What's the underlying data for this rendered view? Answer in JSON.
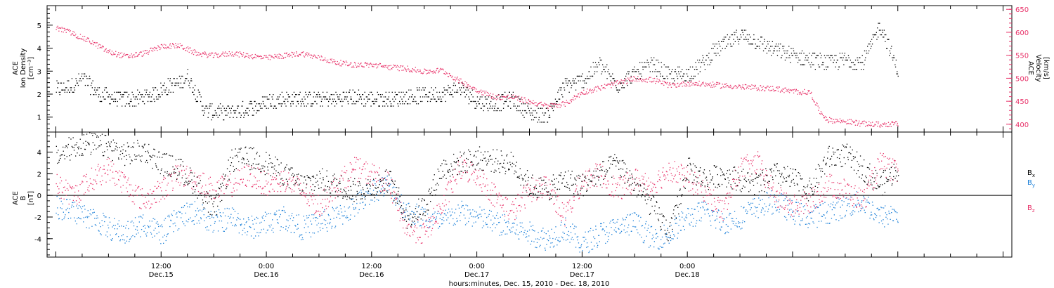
{
  "chart_data": [
    {
      "type": "scatter",
      "panel": "top",
      "left_axis": {
        "label_lines": [
          "ACE",
          "Ion Density",
          "[cm⁻³]"
        ],
        "ticks": [
          1,
          2,
          3,
          4,
          5
        ],
        "ylim": [
          0.35,
          5.85
        ]
      },
      "right_axis": {
        "label_lines": [
          "ACE",
          "Velocity",
          "[km/s]"
        ],
        "ticks": [
          400,
          450,
          500,
          550,
          600,
          650
        ],
        "ylim": [
          383,
          658
        ]
      },
      "series": [
        {
          "axis": "left",
          "color": "#000000",
          "x_hours": [
            0,
            2,
            3,
            5,
            7,
            9,
            11,
            13,
            14,
            15,
            17,
            19,
            21,
            23,
            24,
            26,
            28,
            30,
            32,
            34,
            36,
            38,
            40,
            42,
            44,
            46,
            48,
            50,
            52,
            54,
            56,
            58,
            60,
            62,
            64,
            66,
            68,
            70,
            72,
            74,
            75,
            76,
            77,
            78,
            80,
            82,
            84,
            86,
            88,
            90,
            92,
            94,
            96
          ],
          "values": [
            2.2,
            2.4,
            2.7,
            2.0,
            1.8,
            1.8,
            2.0,
            2.4,
            2.5,
            2.8,
            1.3,
            1.2,
            1.3,
            1.5,
            1.7,
            1.8,
            1.8,
            1.8,
            1.8,
            1.9,
            1.8,
            1.8,
            1.9,
            2.0,
            2.0,
            2.3,
            1.7,
            1.6,
            1.8,
            1.2,
            1.1,
            2.4,
            2.6,
            3.3,
            2.4,
            2.9,
            3.3,
            2.8,
            2.9,
            3.4,
            3.9,
            4.1,
            4.3,
            4.6,
            4.3,
            3.9,
            3.7,
            3.5,
            3.4,
            3.5,
            3.4,
            5.0,
            3.0
          ]
        },
        {
          "axis": "right",
          "color": "#e8336a",
          "x_hours": [
            0,
            1,
            2,
            4,
            6,
            8,
            10,
            12,
            14,
            16,
            18,
            20,
            22,
            24,
            26,
            28,
            30,
            32,
            34,
            36,
            38,
            40,
            42,
            44,
            46,
            48,
            50,
            52,
            54,
            56,
            58,
            60,
            62,
            64,
            66,
            68,
            70,
            72,
            74,
            76,
            78,
            80,
            82,
            84,
            86,
            87,
            88,
            90,
            92,
            94,
            96
          ],
          "values": [
            610,
            605,
            597,
            580,
            558,
            548,
            555,
            570,
            572,
            555,
            550,
            555,
            550,
            545,
            550,
            555,
            545,
            535,
            530,
            530,
            525,
            522,
            515,
            518,
            495,
            475,
            460,
            460,
            450,
            440,
            445,
            470,
            480,
            490,
            500,
            497,
            485,
            490,
            488,
            485,
            482,
            480,
            478,
            472,
            470,
            430,
            410,
            407,
            402,
            400,
            402
          ]
        }
      ],
      "x_range_hours": [
        -1,
        109
      ]
    },
    {
      "type": "scatter",
      "panel": "bottom",
      "left_axis": {
        "label_lines": [
          "ACE",
          "B",
          "[nT]"
        ],
        "ticks": [
          -4,
          -2,
          0,
          2,
          4
        ],
        "ylim": [
          -5.7,
          5.85
        ]
      },
      "legend_position": "right",
      "series": [
        {
          "name": "Bx",
          "color": "#000000",
          "x_hours": [
            0,
            2,
            4,
            6,
            8,
            10,
            12,
            14,
            16,
            18,
            20,
            22,
            24,
            26,
            28,
            30,
            32,
            34,
            36,
            38,
            40,
            42,
            44,
            46,
            48,
            50,
            52,
            54,
            56,
            58,
            60,
            62,
            64,
            66,
            68,
            70,
            72,
            74,
            76,
            78,
            80,
            82,
            84,
            86,
            88,
            90,
            92,
            94,
            96
          ],
          "values": [
            3.5,
            4.6,
            4.8,
            4.5,
            3.8,
            4.2,
            3.0,
            2.5,
            1.0,
            -1.5,
            3.2,
            3.5,
            3.0,
            2.0,
            1.0,
            1.5,
            1.0,
            0.5,
            0.8,
            1.5,
            -2.0,
            -1.0,
            2.5,
            3.0,
            3.5,
            3.2,
            3.0,
            1.0,
            0.5,
            1.5,
            1.0,
            2.0,
            3.0,
            1.0,
            -1.0,
            -3.5,
            2.5,
            1.5,
            2.0,
            1.5,
            1.0,
            2.0,
            1.5,
            0.5,
            3.5,
            3.8,
            2.5,
            1.0,
            2.5
          ]
        },
        {
          "name": "By",
          "color": "#1a7fd8",
          "x_hours": [
            0,
            2,
            4,
            6,
            8,
            10,
            12,
            14,
            16,
            18,
            20,
            22,
            24,
            26,
            28,
            30,
            32,
            34,
            36,
            38,
            40,
            42,
            44,
            46,
            48,
            50,
            52,
            54,
            56,
            58,
            60,
            62,
            64,
            66,
            68,
            70,
            72,
            74,
            76,
            78,
            80,
            82,
            84,
            86,
            88,
            90,
            92,
            94,
            96
          ],
          "values": [
            -1.0,
            -1.5,
            -2.0,
            -3.0,
            -3.5,
            -2.5,
            -3.5,
            -2.0,
            -1.5,
            -2.5,
            -2.0,
            -3.0,
            -2.5,
            -2.0,
            -3.0,
            -2.5,
            -2.0,
            -1.0,
            0.5,
            1.0,
            -1.5,
            -2.0,
            -2.5,
            -1.5,
            -2.0,
            -2.5,
            -3.0,
            -3.5,
            -4.0,
            -3.0,
            -4.5,
            -3.5,
            -3.0,
            -2.5,
            -4.0,
            -3.5,
            -2.0,
            -1.5,
            -2.5,
            -2.0,
            -1.0,
            -0.5,
            -1.5,
            -2.0,
            -1.5,
            -1.0,
            -0.5,
            -2.0,
            -1.5
          ]
        },
        {
          "name": "Bz",
          "color": "#e8336a",
          "x_hours": [
            0,
            2,
            4,
            6,
            8,
            10,
            12,
            14,
            16,
            18,
            20,
            22,
            24,
            26,
            28,
            30,
            32,
            34,
            36,
            38,
            40,
            42,
            44,
            46,
            48,
            50,
            52,
            54,
            56,
            58,
            60,
            62,
            64,
            66,
            68,
            70,
            72,
            74,
            76,
            78,
            80,
            82,
            84,
            86,
            88,
            90,
            92,
            94,
            96
          ],
          "values": [
            1.0,
            0.0,
            1.5,
            2.5,
            1.0,
            -0.5,
            0.5,
            2.0,
            1.5,
            0.5,
            1.0,
            2.0,
            1.0,
            1.5,
            0.5,
            -1.0,
            1.0,
            2.5,
            2.0,
            1.0,
            -3.0,
            -3.5,
            -1.0,
            2.5,
            2.0,
            0.0,
            -1.5,
            0.5,
            1.0,
            -2.0,
            1.5,
            2.0,
            0.5,
            1.5,
            1.0,
            2.5,
            1.5,
            0.5,
            -1.5,
            2.5,
            3.0,
            0.0,
            -1.0,
            -0.5,
            1.0,
            0.5,
            -0.5,
            3.0,
            2.0
          ]
        }
      ],
      "legend": [
        "B",
        "B",
        "B"
      ],
      "legend_subscripts": [
        "x",
        "y",
        "z"
      ]
    }
  ],
  "x_axis": {
    "ticks": [
      {
        "hour": 12,
        "time": "12:00",
        "date": "Dec.15"
      },
      {
        "hour": 24,
        "time": "0:00",
        "date": "Dec.16"
      },
      {
        "hour": 36,
        "time": "12:00",
        "date": "Dec.16"
      },
      {
        "hour": 48,
        "time": "0:00",
        "date": "Dec.17"
      },
      {
        "hour": 60,
        "time": "12:00",
        "date": "Dec.17"
      },
      {
        "hour": 72,
        "time": "0:00",
        "date": "Dec.18"
      }
    ],
    "xlabel": "hours:minutes, Dec. 15, 2010 - Dec. 18, 2010"
  },
  "colors": {
    "black": "#000000",
    "blue": "#1a7fd8",
    "red": "#e8336a",
    "axes": "#000000"
  }
}
